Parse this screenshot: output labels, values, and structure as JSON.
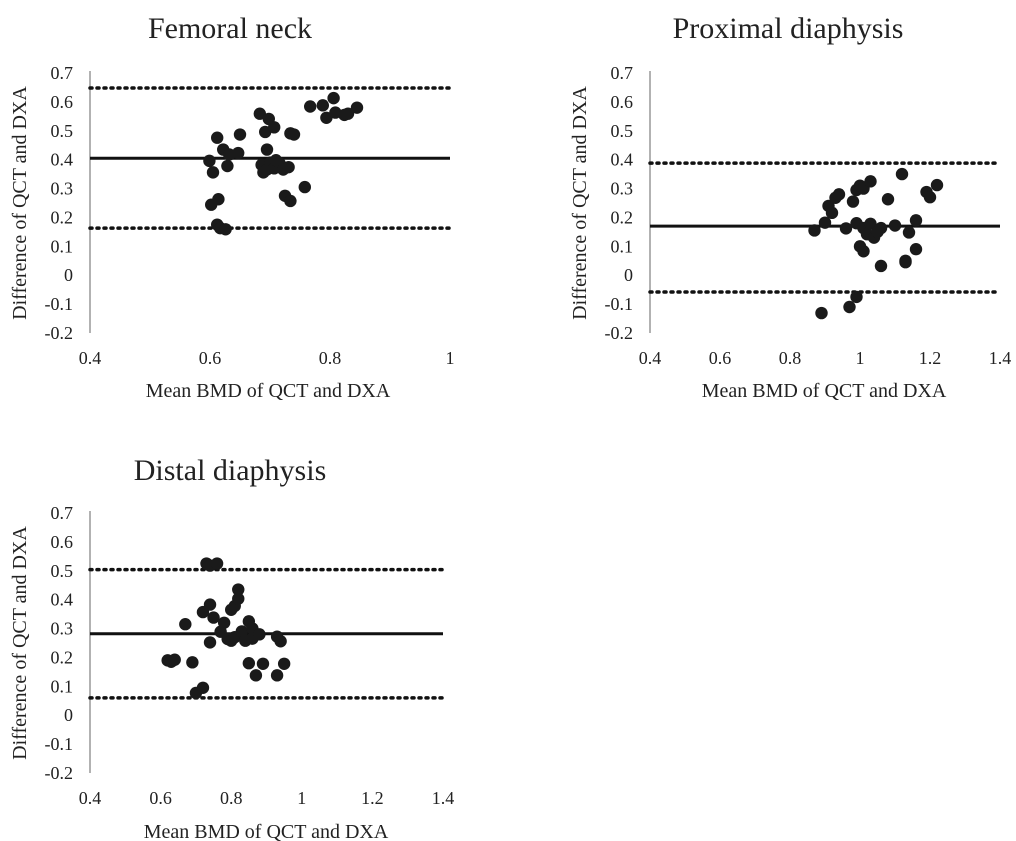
{
  "chart_data": [
    {
      "type": "scatter",
      "title": "Femoral neck",
      "xlabel": "Mean BMD of QCT and DXA",
      "ylabel": "Difference of QCT and DXA",
      "xlim": [
        0.4,
        1.0
      ],
      "ylim": [
        -0.2,
        0.7
      ],
      "xticks": [
        0.4,
        0.6,
        0.8,
        1.0
      ],
      "xtick_labels": [
        "0.4",
        "0.6",
        "0.8",
        "1"
      ],
      "yticks": [
        0.7,
        0.6,
        0.5,
        0.4,
        0.3,
        0.2,
        0.1,
        0,
        -0.1,
        -0.2
      ],
      "ytick_labels": [
        "0.7",
        "0.6",
        "0.5",
        "0.4",
        "0.3",
        "0.2",
        "0.1",
        "0",
        "-0.1",
        "-0.2"
      ],
      "mean_line": 0.405,
      "loa_upper": 0.648,
      "loa_lower": 0.163,
      "grid": false,
      "points": [
        [
          0.599,
          0.396
        ],
        [
          0.602,
          0.244
        ],
        [
          0.605,
          0.356
        ],
        [
          0.612,
          0.476
        ],
        [
          0.612,
          0.175
        ],
        [
          0.614,
          0.263
        ],
        [
          0.617,
          0.163
        ],
        [
          0.622,
          0.435
        ],
        [
          0.626,
          0.159
        ],
        [
          0.629,
          0.378
        ],
        [
          0.632,
          0.418
        ],
        [
          0.647,
          0.423
        ],
        [
          0.65,
          0.487
        ],
        [
          0.683,
          0.559
        ],
        [
          0.686,
          0.382
        ],
        [
          0.689,
          0.356
        ],
        [
          0.692,
          0.496
        ],
        [
          0.695,
          0.435
        ],
        [
          0.695,
          0.366
        ],
        [
          0.698,
          0.541
        ],
        [
          0.701,
          0.39
        ],
        [
          0.707,
          0.512
        ],
        [
          0.707,
          0.37
        ],
        [
          0.71,
          0.398
        ],
        [
          0.716,
          0.387
        ],
        [
          0.722,
          0.366
        ],
        [
          0.725,
          0.275
        ],
        [
          0.731,
          0.374
        ],
        [
          0.734,
          0.257
        ],
        [
          0.734,
          0.491
        ],
        [
          0.74,
          0.487
        ],
        [
          0.758,
          0.305
        ],
        [
          0.767,
          0.584
        ],
        [
          0.788,
          0.588
        ],
        [
          0.794,
          0.545
        ],
        [
          0.806,
          0.613
        ],
        [
          0.809,
          0.563
        ],
        [
          0.824,
          0.555
        ],
        [
          0.83,
          0.559
        ],
        [
          0.845,
          0.58
        ]
      ]
    },
    {
      "type": "scatter",
      "title": "Proximal diaphysis",
      "xlabel": "Mean BMD of QCT and DXA",
      "ylabel": "Difference of QCT and DXA",
      "xlim": [
        0.4,
        1.4
      ],
      "ylim": [
        -0.2,
        0.7
      ],
      "xticks": [
        0.4,
        0.6,
        0.8,
        1.0,
        1.2,
        1.4
      ],
      "xtick_labels": [
        "0.4",
        "0.6",
        "0.8",
        "1",
        "1.2",
        "1.4"
      ],
      "yticks": [
        0.7,
        0.6,
        0.5,
        0.4,
        0.3,
        0.2,
        0.1,
        0,
        -0.1,
        -0.2
      ],
      "ytick_labels": [
        "0.7",
        "0.6",
        "0.5",
        "0.4",
        "0.3",
        "0.2",
        "0.1",
        "0",
        "-0.1",
        "-0.2"
      ],
      "mean_line": 0.17,
      "loa_upper": 0.388,
      "loa_lower": -0.058,
      "grid": false,
      "points": [
        [
          0.87,
          0.155
        ],
        [
          0.89,
          -0.131
        ],
        [
          0.9,
          0.182
        ],
        [
          0.91,
          0.24
        ],
        [
          0.92,
          0.216
        ],
        [
          0.93,
          0.268
        ],
        [
          0.94,
          0.28
        ],
        [
          0.96,
          0.162
        ],
        [
          0.97,
          -0.11
        ],
        [
          0.98,
          0.255
        ],
        [
          0.99,
          0.18
        ],
        [
          0.99,
          -0.075
        ],
        [
          0.99,
          0.295
        ],
        [
          1.0,
          0.1
        ],
        [
          1.0,
          0.31
        ],
        [
          1.01,
          0.163
        ],
        [
          1.01,
          0.083
        ],
        [
          1.01,
          0.3
        ],
        [
          1.02,
          0.142
        ],
        [
          1.03,
          0.178
        ],
        [
          1.03,
          0.325
        ],
        [
          1.04,
          0.13
        ],
        [
          1.05,
          0.15
        ],
        [
          1.06,
          0.163
        ],
        [
          1.06,
          0.032
        ],
        [
          1.08,
          0.263
        ],
        [
          1.1,
          0.172
        ],
        [
          1.12,
          0.35
        ],
        [
          1.13,
          0.05
        ],
        [
          1.13,
          0.045
        ],
        [
          1.14,
          0.148
        ],
        [
          1.16,
          0.19
        ],
        [
          1.16,
          0.09
        ],
        [
          1.19,
          0.288
        ],
        [
          1.2,
          0.27
        ],
        [
          1.22,
          0.312
        ]
      ]
    },
    {
      "type": "scatter",
      "title": "Distal diaphysis",
      "xlabel": "Mean BMD of QCT and DXA",
      "ylabel": "Difference of QCT and DXA",
      "xlim": [
        0.4,
        1.4
      ],
      "ylim": [
        -0.2,
        0.7
      ],
      "xticks": [
        0.4,
        0.6,
        0.8,
        1.0,
        1.2,
        1.4
      ],
      "xtick_labels": [
        "0.4",
        "0.6",
        "0.8",
        "1",
        "1.2",
        "1.4"
      ],
      "yticks": [
        0.7,
        0.6,
        0.5,
        0.4,
        0.3,
        0.2,
        0.1,
        0,
        -0.1,
        -0.2
      ],
      "ytick_labels": [
        "0.7",
        "0.6",
        "0.5",
        "0.4",
        "0.3",
        "0.2",
        "0.1",
        "0",
        "-0.1",
        "-0.2"
      ],
      "mean_line": 0.282,
      "loa_upper": 0.504,
      "loa_lower": 0.06,
      "grid": false,
      "points": [
        [
          0.62,
          0.19
        ],
        [
          0.63,
          0.185
        ],
        [
          0.64,
          0.192
        ],
        [
          0.67,
          0.315
        ],
        [
          0.69,
          0.183
        ],
        [
          0.7,
          0.077
        ],
        [
          0.72,
          0.357
        ],
        [
          0.72,
          0.095
        ],
        [
          0.73,
          0.525
        ],
        [
          0.74,
          0.518
        ],
        [
          0.74,
          0.383
        ],
        [
          0.74,
          0.252
        ],
        [
          0.75,
          0.338
        ],
        [
          0.76,
          0.525
        ],
        [
          0.77,
          0.289
        ],
        [
          0.78,
          0.32
        ],
        [
          0.79,
          0.264
        ],
        [
          0.8,
          0.258
        ],
        [
          0.8,
          0.365
        ],
        [
          0.81,
          0.378
        ],
        [
          0.81,
          0.27
        ],
        [
          0.82,
          0.435
        ],
        [
          0.82,
          0.403
        ],
        [
          0.83,
          0.29
        ],
        [
          0.84,
          0.258
        ],
        [
          0.85,
          0.325
        ],
        [
          0.85,
          0.18
        ],
        [
          0.86,
          0.3
        ],
        [
          0.86,
          0.265
        ],
        [
          0.87,
          0.138
        ],
        [
          0.88,
          0.28
        ],
        [
          0.89,
          0.178
        ],
        [
          0.93,
          0.138
        ],
        [
          0.93,
          0.272
        ],
        [
          0.94,
          0.256
        ],
        [
          0.95,
          0.178
        ]
      ]
    }
  ]
}
